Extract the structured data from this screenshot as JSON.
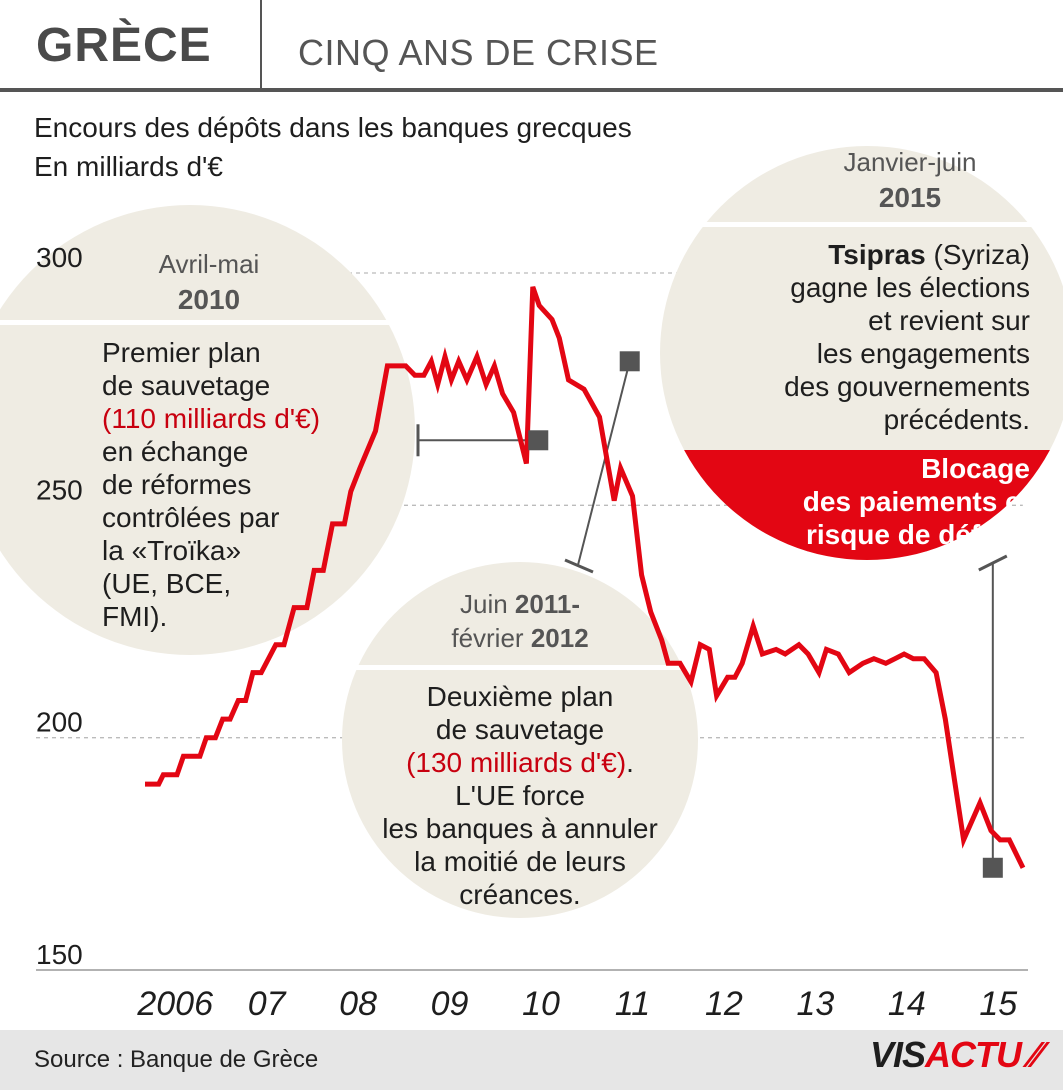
{
  "header": {
    "title": "GRÈCE",
    "subtitle": "CINQ ANS DE CRISE"
  },
  "subtitle_line1": "Encours des dépôts dans les banques grecques",
  "subtitle_line2": "En milliards d'€",
  "chart_data": {
    "type": "line",
    "title": "Encours des dépôts dans les banques grecques",
    "ylabel": "En milliards d'€",
    "ylim": [
      150,
      300
    ],
    "yticks": [
      150,
      200,
      250,
      300
    ],
    "xlim": [
      2005.72,
      2015.82
    ],
    "xticks": [
      2006,
      2007,
      2008,
      2009,
      2010,
      2011,
      2012,
      2013,
      2014,
      2015
    ],
    "xtick_labels": [
      "2006",
      "07",
      "08",
      "09",
      "10",
      "11",
      "12",
      "13",
      "14",
      "15"
    ],
    "grid": true,
    "series": [
      {
        "name": "",
        "color": "#e30613",
        "x": [
          2005.75,
          2005.9,
          2005.95,
          2006.1,
          2006.17,
          2006.35,
          2006.42,
          2006.52,
          2006.6,
          2006.68,
          2006.77,
          2006.85,
          2006.93,
          2007.02,
          2007.18,
          2007.27,
          2007.38,
          2007.52,
          2007.6,
          2007.7,
          2007.8,
          2007.93,
          2008.0,
          2008.1,
          2008.27,
          2008.4,
          2008.6,
          2008.7,
          2008.8,
          2008.88,
          2008.95,
          2009.03,
          2009.1,
          2009.18,
          2009.27,
          2009.38,
          2009.48,
          2009.57,
          2009.66,
          2009.78,
          2009.92,
          2009.99,
          2010.06,
          2010.2,
          2010.28,
          2010.38,
          2010.55,
          2010.72,
          2010.88,
          2010.95,
          2011.08,
          2011.18,
          2011.28,
          2011.4,
          2011.47,
          2011.6,
          2011.72,
          2011.82,
          2011.92,
          2012.0,
          2012.12,
          2012.2,
          2012.28,
          2012.4,
          2012.5,
          2012.65,
          2012.75,
          2012.9,
          2013.0,
          2013.12,
          2013.2,
          2013.33,
          2013.45,
          2013.6,
          2013.72,
          2013.85,
          2013.95,
          2014.05,
          2014.15,
          2014.27,
          2014.4,
          2014.5,
          2014.6,
          2014.7,
          2014.88,
          2015.0,
          2015.1,
          2015.2,
          2015.35
        ],
        "y": [
          190,
          190,
          192,
          192,
          196,
          196,
          200,
          200,
          204,
          204,
          208,
          208,
          214,
          214,
          220,
          220,
          228,
          228,
          236,
          236,
          246,
          246,
          253,
          258,
          266,
          280,
          280,
          278,
          278,
          281,
          276,
          282,
          277,
          281,
          277,
          282,
          276,
          280,
          274,
          270,
          259,
          297,
          293,
          290,
          286,
          277,
          275,
          269,
          251,
          258,
          252,
          235,
          227,
          221,
          216,
          216,
          212,
          220,
          219,
          209,
          213,
          213,
          216,
          224,
          218,
          219,
          218,
          220,
          218,
          214,
          219,
          218,
          214,
          216,
          217,
          216,
          217,
          218,
          217,
          217,
          214,
          204,
          191,
          178,
          186,
          180,
          178,
          178,
          172
        ]
      }
    ],
    "markers": [
      {
        "x": 2010.05,
        "y": 264
      },
      {
        "x": 2011.05,
        "y": 281
      },
      {
        "x": 2015.02,
        "y": 172
      }
    ],
    "annotations": [
      {
        "period": "Avril-mai",
        "year": "2010"
      },
      {
        "period_start": "Juin",
        "year_start": "2011",
        "period_end": "février",
        "year_end": "2012"
      },
      {
        "period": "Janvier-juin",
        "year": "2015"
      }
    ]
  },
  "annotations": {
    "a2010": {
      "head1": "Avril-mai",
      "head2": "2010",
      "line1": "Premier plan",
      "line2": "de sauvetage",
      "line3": "(110 milliards d'€)",
      "line4": "en échange",
      "line5": "de réformes",
      "line6": "contrôlées par",
      "line7": "la «Troïka»",
      "line8": "(UE, BCE,",
      "line9": "FMI)."
    },
    "a2011": {
      "head_a": "Juin ",
      "head_b": "2011",
      "head_c": "-",
      "head_d": "février ",
      "head_e": "2012",
      "line1": "Deuxième plan",
      "line2": "de sauvetage",
      "line3": "(130 milliards d'€)",
      "line3b": ".",
      "line4": "L'UE force",
      "line5": "les banques à annuler",
      "line6": "la moitié de leurs",
      "line7": "créances."
    },
    "a2015": {
      "head1": "Janvier-juin",
      "head2": "2015",
      "line1a": "Tsipras",
      "line1b": " (Syriza)",
      "line2": "gagne les élections",
      "line3": "et revient sur",
      "line4": "les engagements",
      "line5": "des gouvernements",
      "line6": "précédents.",
      "red1": "Blocage",
      "red2": "des paiements et",
      "red3": "risque de défaut."
    }
  },
  "footer": {
    "source": "Source : Banque de Grèce",
    "logo_part1": "VIS",
    "logo_part2": "ACTU",
    "logo_mark": "⁄⁄"
  },
  "colors": {
    "line": "#e30613",
    "bubble": "#efece3",
    "red_panel": "#e30613",
    "marker": "#555555",
    "grid": "#bbbbbb"
  }
}
